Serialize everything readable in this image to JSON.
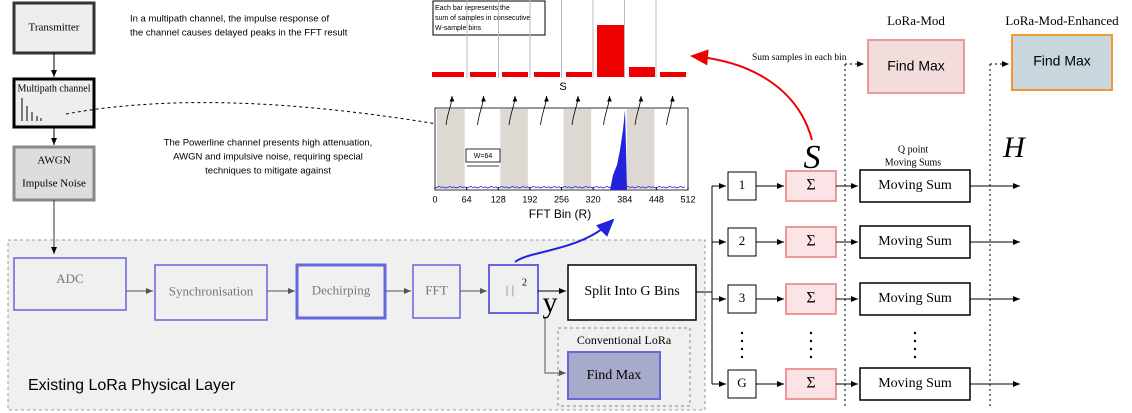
{
  "transmitter": "Transmitter",
  "channel": {
    "multipath": "Multipath channel",
    "noise": [
      "AWGN",
      "Impulse Noise"
    ]
  },
  "notes": {
    "multipath": [
      "In a multipath channel, the impulse response of",
      "the channel causes delayed peaks in the FFT result"
    ],
    "powerline": [
      "The Powerline channel presents high attenuation,",
      "AWGN and impulsive noise, requiring special",
      "techniques to mitigate against"
    ]
  },
  "phy": {
    "label": "Existing LoRa Physical Layer",
    "blocks": [
      "ADC",
      "Synchronisation",
      "Dechirping",
      "FFT"
    ],
    "magnitude": {
      "bars": "|  |",
      "power": "2"
    },
    "output": "y"
  },
  "split": "Split Into G Bins",
  "conventional": {
    "label": "Conventional LoRa",
    "find_max": "Find Max"
  },
  "bin_chart": {
    "legend": [
      "Each bar represents the",
      "sum of samples in consecutive",
      "W-sample bins"
    ],
    "label": "S"
  },
  "fft_plot": {
    "xlabel": "FFT Bin (R)",
    "xlim": [
      0,
      512
    ],
    "xticks": [
      0,
      64,
      128,
      192,
      256,
      320,
      384,
      448,
      512
    ],
    "window": "W=64"
  },
  "bins": {
    "labels": [
      "1",
      "2",
      "3",
      "G"
    ],
    "sum": "Σ",
    "moving_sum": "Moving Sum",
    "moving_header": [
      "Q point",
      "Moving Sums"
    ],
    "s_symbol": "S",
    "h_symbol": "H",
    "annotation": "Sum samples in each bin"
  },
  "lora_mod": {
    "title": "LoRa-Mod",
    "find_max": "Find Max"
  },
  "lora_mod_enhanced": {
    "title": "LoRa-Mod-Enhanced",
    "find_max": "Find Max"
  }
}
